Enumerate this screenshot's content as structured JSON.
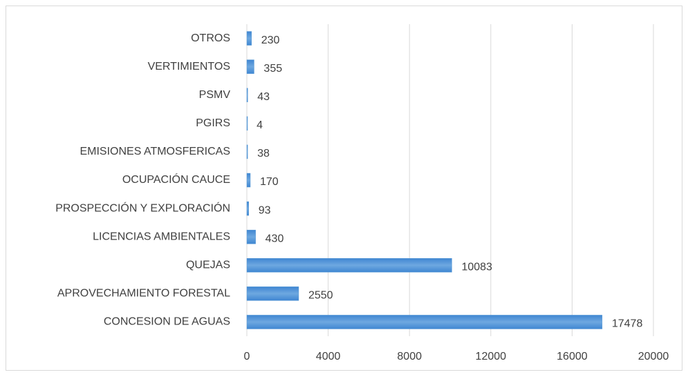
{
  "chart_data": {
    "type": "barh",
    "categories": [
      "CONCESION DE AGUAS",
      "APROVECHAMIENTO FORESTAL",
      "QUEJAS",
      "LICENCIAS AMBIENTALES",
      "PROSPECCIÓN Y EXPLORACIÓN",
      "OCUPACIÓN CAUCE",
      "EMISIONES ATMOSFERICAS",
      "PGIRS",
      "PSMV",
      "VERTIMIENTOS",
      "OTROS"
    ],
    "values": [
      17478,
      2550,
      10083,
      430,
      93,
      170,
      38,
      4,
      43,
      355,
      230
    ],
    "color": "#5b9bd5",
    "xlim": [
      0,
      20000
    ],
    "xticks": [
      0,
      4000,
      8000,
      12000,
      16000,
      20000
    ],
    "grid": true
  }
}
